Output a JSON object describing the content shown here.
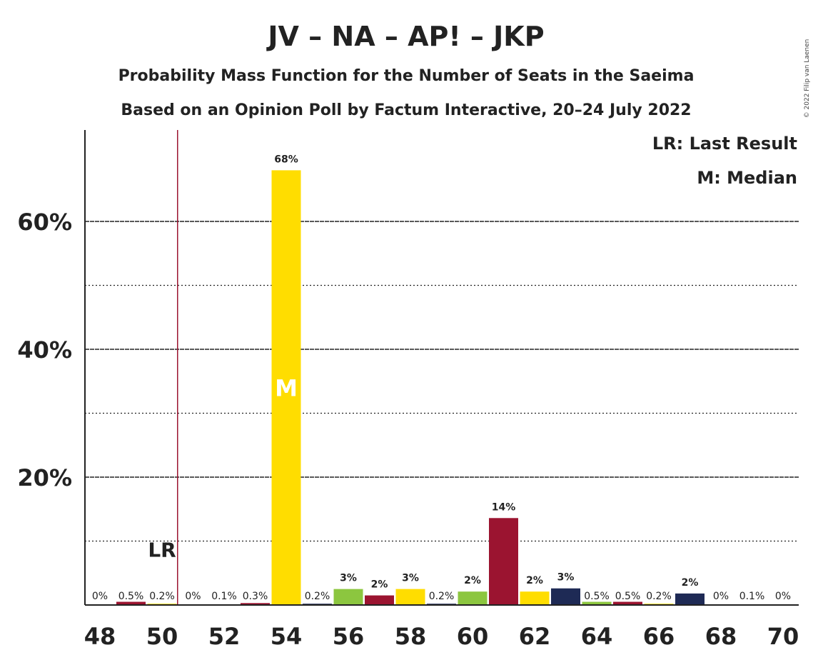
{
  "chart_data": {
    "type": "bar",
    "title": "JV – NA – AP! – JKP",
    "subtitle": "Probability Mass Function for the Number of Seats in the Saeima",
    "subtitle2": "Based on an Opinion Poll by Factum Interactive, 20–24 July 2022",
    "copyright": "© 2022 Filip van Laenen",
    "legend": {
      "lr": "LR: Last Result",
      "median": "M: Median",
      "placement": "top-right"
    },
    "x_range": [
      48,
      70
    ],
    "x_ticks": [
      48,
      50,
      52,
      54,
      56,
      58,
      60,
      62,
      64,
      66,
      68,
      70
    ],
    "y_range": [
      0,
      72
    ],
    "y_ticks": [
      {
        "value": 20,
        "label": "20%"
      },
      {
        "value": 40,
        "label": "40%"
      },
      {
        "value": 60,
        "label": "60%"
      }
    ],
    "y_minor_gridlines": [
      10,
      30,
      50
    ],
    "last_result": {
      "seat": 50.5,
      "label": "LR"
    },
    "median": {
      "seat": 54,
      "label": "M"
    },
    "bars": [
      {
        "seat": 48,
        "value": 0.0,
        "label": "0%",
        "color": "#FFDD00"
      },
      {
        "seat": 49,
        "value": 0.5,
        "label": "0.5%",
        "color": "#9B1430"
      },
      {
        "seat": 50,
        "value": 0.2,
        "label": "0.2%",
        "color": "#FFDD00"
      },
      {
        "seat": 51,
        "value": 0.0,
        "label": "0%",
        "color": "#1E2A55"
      },
      {
        "seat": 52,
        "value": 0.1,
        "label": "0.1%",
        "color": "#8CC63F"
      },
      {
        "seat": 53,
        "value": 0.3,
        "label": "0.3%",
        "color": "#9B1430"
      },
      {
        "seat": 54,
        "value": 68.0,
        "label": "68%",
        "color": "#FFDD00"
      },
      {
        "seat": 55,
        "value": 0.2,
        "label": "0.2%",
        "color": "#1E2A55"
      },
      {
        "seat": 56,
        "value": 2.5,
        "label": "3%",
        "color": "#8CC63F"
      },
      {
        "seat": 57,
        "value": 1.5,
        "label": "2%",
        "color": "#9B1430"
      },
      {
        "seat": 58,
        "value": 2.5,
        "label": "3%",
        "color": "#FFDD00"
      },
      {
        "seat": 59,
        "value": 0.2,
        "label": "0.2%",
        "color": "#1E2A55"
      },
      {
        "seat": 60,
        "value": 2.1,
        "label": "2%",
        "color": "#8CC63F"
      },
      {
        "seat": 61,
        "value": 13.6,
        "label": "14%",
        "color": "#9B1430"
      },
      {
        "seat": 62,
        "value": 2.1,
        "label": "2%",
        "color": "#FFDD00"
      },
      {
        "seat": 63,
        "value": 2.6,
        "label": "3%",
        "color": "#1E2A55"
      },
      {
        "seat": 64,
        "value": 0.5,
        "label": "0.5%",
        "color": "#8CC63F"
      },
      {
        "seat": 65,
        "value": 0.5,
        "label": "0.5%",
        "color": "#9B1430"
      },
      {
        "seat": 66,
        "value": 0.2,
        "label": "0.2%",
        "color": "#FFDD00"
      },
      {
        "seat": 67,
        "value": 1.8,
        "label": "2%",
        "color": "#1E2A55"
      },
      {
        "seat": 68,
        "value": 0.0,
        "label": "0%",
        "color": "#8CC63F"
      },
      {
        "seat": 69,
        "value": 0.1,
        "label": "0.1%",
        "color": "#9B1430"
      },
      {
        "seat": 70,
        "value": 0.0,
        "label": "0%",
        "color": "#FFDD00"
      }
    ]
  }
}
